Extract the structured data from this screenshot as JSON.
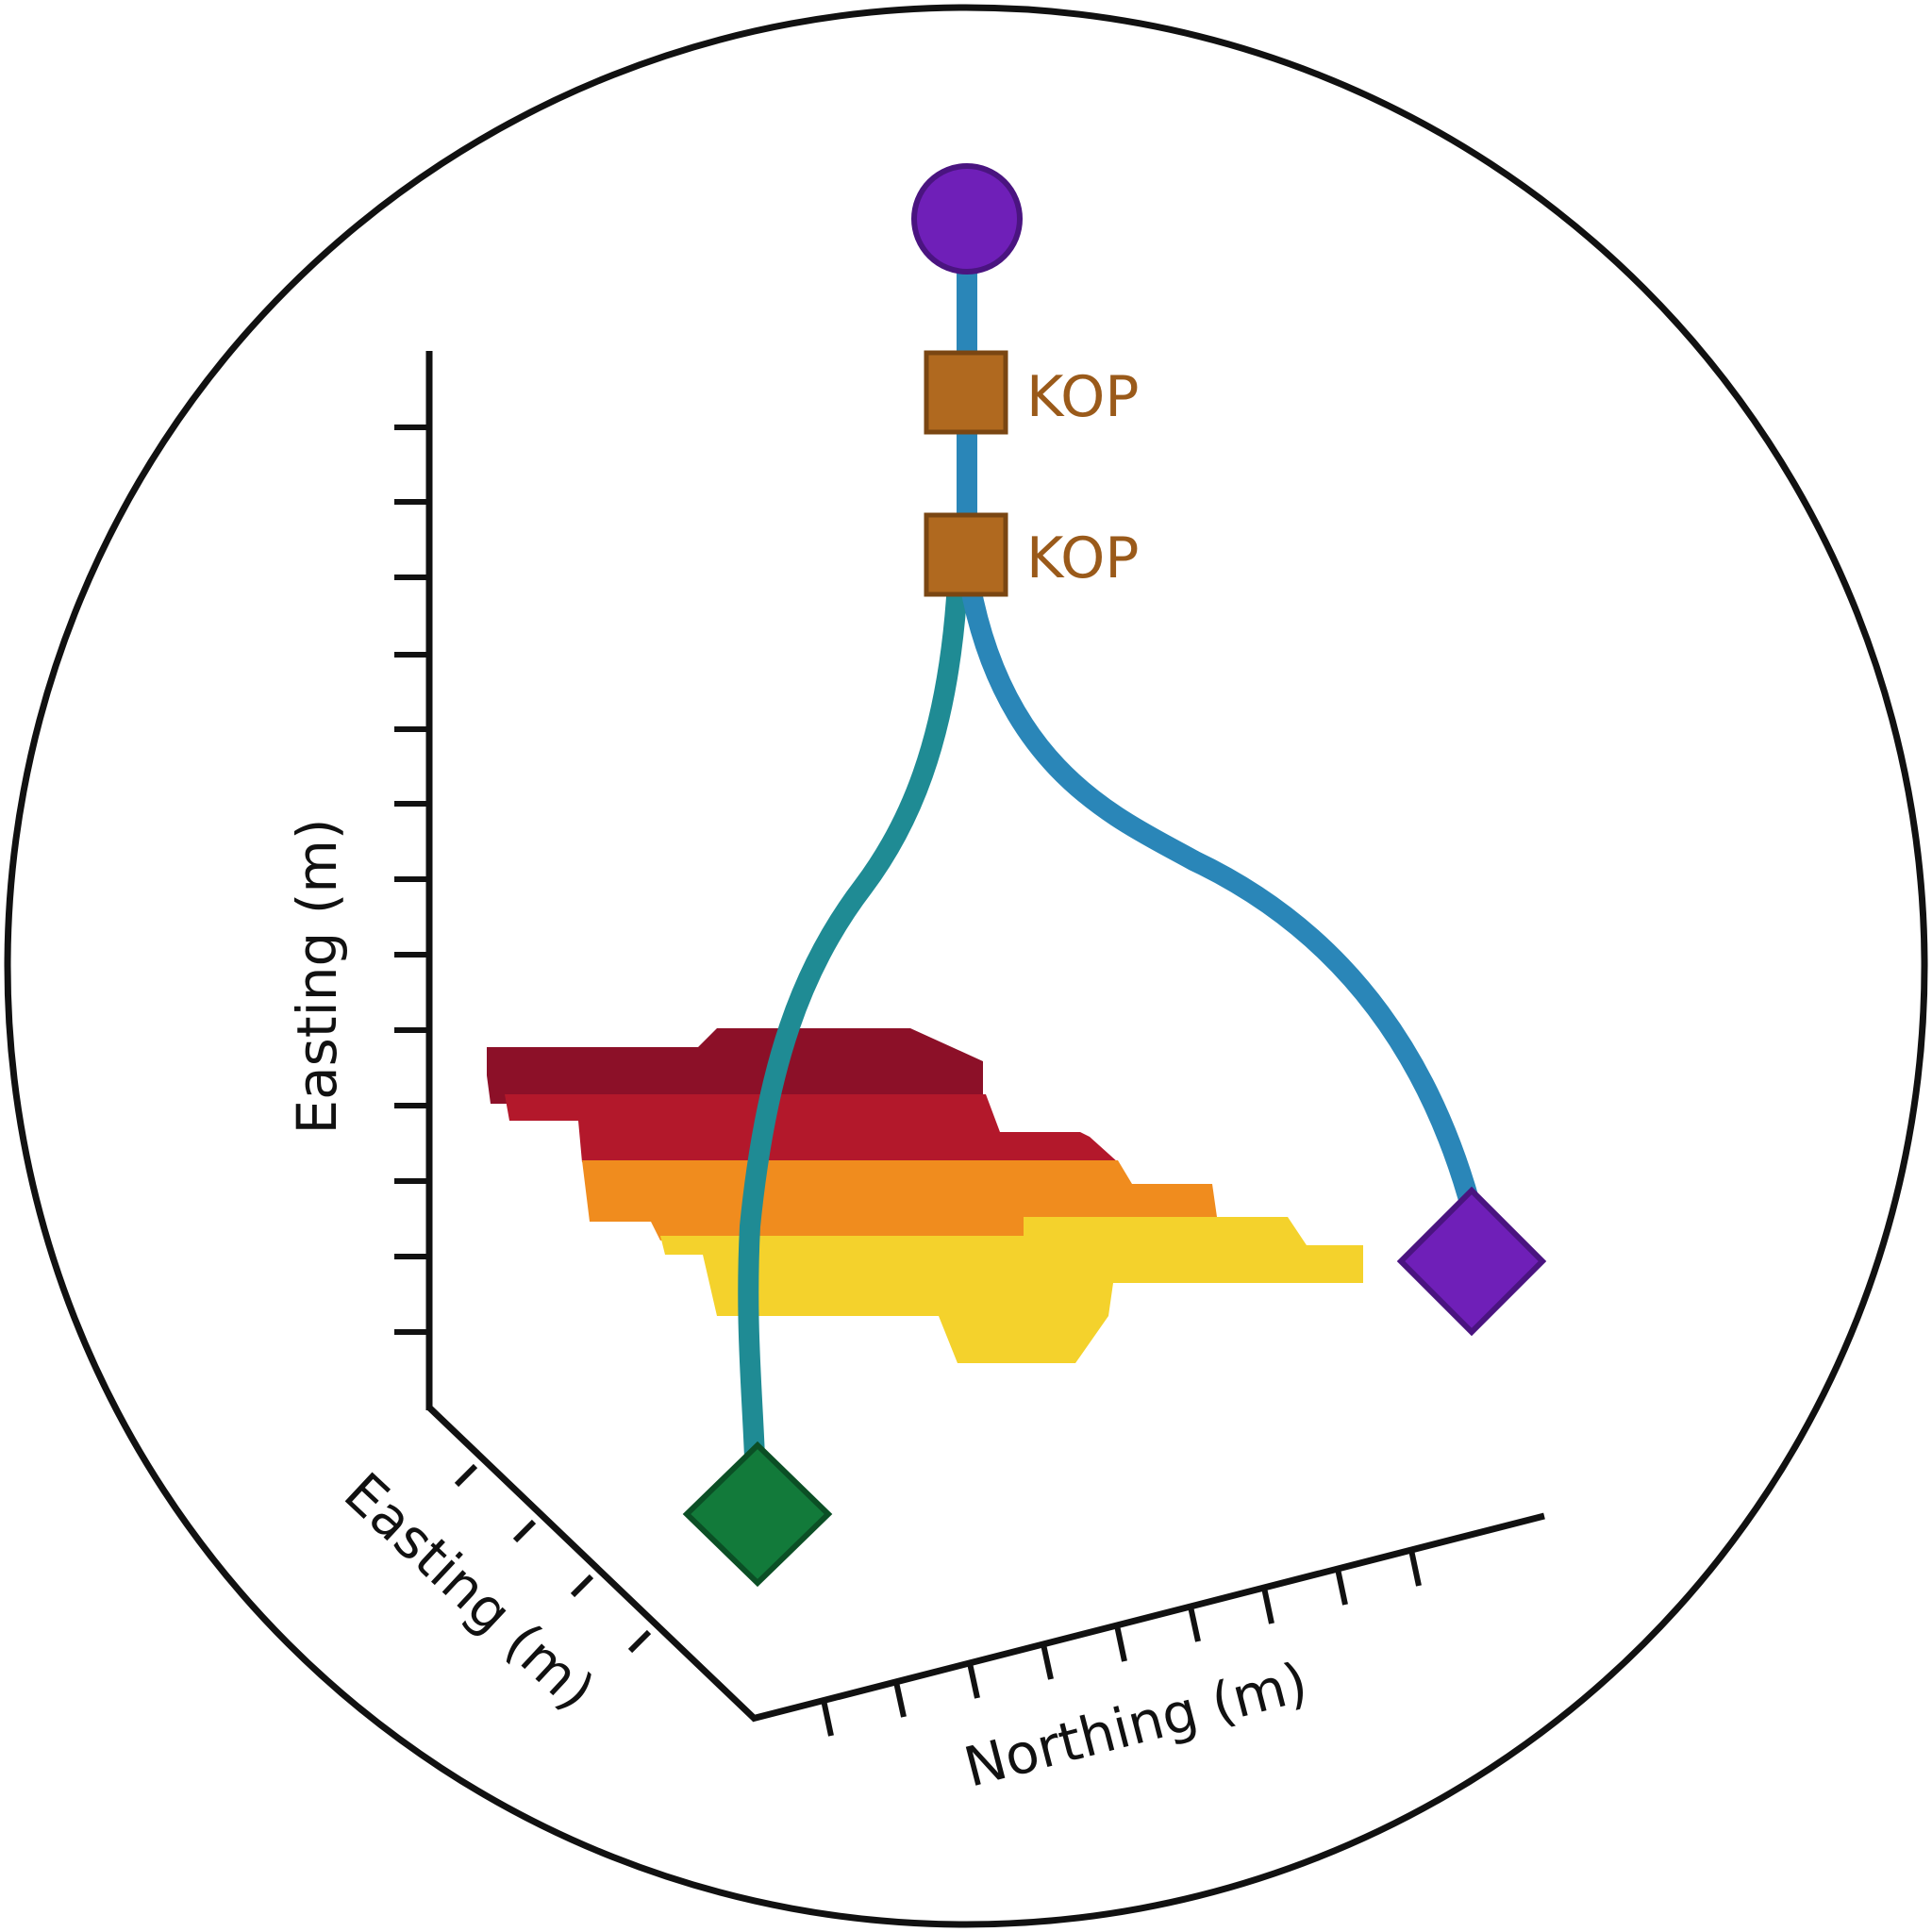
{
  "diagram": {
    "axes": {
      "vertical_label": "Easting (m)",
      "depth_label": "Easting (m)",
      "horizontal_label": "Northing (m)"
    },
    "kickoff_labels": [
      "KOP",
      "KOP"
    ],
    "markers": {
      "wellhead": "circle",
      "kickoff_points": "square",
      "target_left": "diamond",
      "target_right": "diamond"
    },
    "colors": {
      "frame": "#111111",
      "wellhead": "#6f1fb8",
      "kop": "#b0691f",
      "kop_text": "#9a5a1a",
      "target_left": "#127a3a",
      "target_right": "#6f1fb8",
      "well_left": "#1f8b94",
      "well_right": "#2a86b8",
      "layers": [
        "#8c1028",
        "#b3182b",
        "#f08c1e",
        "#f4d22c"
      ]
    }
  }
}
